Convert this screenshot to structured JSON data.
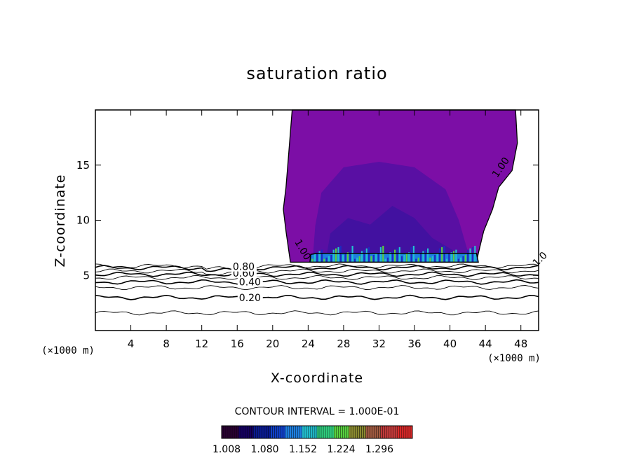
{
  "chart_data": {
    "type": "contour",
    "title": "saturation ratio",
    "xlabel": "X-coordinate",
    "ylabel": "Z-coordinate",
    "x_unit_left": "(×1000 m)",
    "x_unit_right": "(×1000 m)",
    "xlim": [
      0,
      50
    ],
    "ylim": [
      0,
      20
    ],
    "x_ticks": [
      4,
      8,
      12,
      16,
      20,
      24,
      28,
      32,
      36,
      40,
      44,
      48
    ],
    "y_ticks": [
      5,
      10,
      15
    ],
    "x_tick_labels": [
      "4",
      "8",
      "12",
      "16",
      "20",
      "24",
      "28",
      "32",
      "36",
      "40",
      "44",
      "48"
    ],
    "y_tick_labels": [
      "5",
      "10",
      "15"
    ],
    "contour_lines": [
      {
        "level": 0.1,
        "z": 1.6
      },
      {
        "level": 0.2,
        "z": 3.0
      },
      {
        "level": 0.3,
        "z": 3.9
      },
      {
        "level": 0.4,
        "z": 4.4
      },
      {
        "level": 0.5,
        "z": 4.8
      },
      {
        "level": 0.6,
        "z": 5.1
      },
      {
        "level": 0.7,
        "z": 5.4
      },
      {
        "level": 0.8,
        "z": 5.7
      },
      {
        "level": 0.9,
        "z": 5.85
      }
    ],
    "contour_labels": [
      {
        "text": "0.20",
        "x": 16.2,
        "z": 3.0
      },
      {
        "text": "0.40",
        "x": 16.2,
        "z": 4.4
      },
      {
        "text": "0.60",
        "x": 15.5,
        "z": 5.2
      },
      {
        "text": "0.80",
        "x": 15.5,
        "z": 5.8
      },
      {
        "text": "1.00",
        "x": 22.8,
        "z": 8.2
      },
      {
        "text": "1.00",
        "x": 45.0,
        "z": 14.0
      },
      {
        "text": "1.0",
        "x": 49.5,
        "z": 6.0
      }
    ],
    "supersaturated_region": {
      "z_base": 6.2,
      "left_edge": [
        [
          22.0,
          6.2
        ],
        [
          21.5,
          9.0
        ],
        [
          21.2,
          11.0
        ],
        [
          21.5,
          13.0
        ],
        [
          21.8,
          16.0
        ],
        [
          22.2,
          20.0
        ]
      ],
      "right_edge": [
        [
          47.4,
          20.0
        ],
        [
          47.6,
          17.0
        ],
        [
          47.0,
          14.5
        ],
        [
          45.5,
          13.0
        ],
        [
          44.8,
          11.0
        ],
        [
          43.8,
          9.0
        ],
        [
          43.2,
          7.0
        ],
        [
          43.0,
          6.2
        ]
      ]
    },
    "contour_interval_label": "CONTOUR INTERVAL = 1.000E-01",
    "colorbar": {
      "ticks": [
        "1.008",
        "1.080",
        "1.152",
        "1.224",
        "1.296"
      ],
      "colors": [
        "#2a0033",
        "#14005e",
        "#0a1a90",
        "#1040c8",
        "#1e7fe0",
        "#22c0d0",
        "#30d080",
        "#58d040",
        "#8a8a30",
        "#a05a40",
        "#c03a3a",
        "#e02a2a"
      ]
    },
    "fill_colors": {
      "low": "#7c0ea6",
      "mid": "#6a0ca0",
      "inner": "#530fa2",
      "core": "#3f12a0",
      "base_blue": "#1e7fe0",
      "base_cyan": "#22c0d0",
      "base_green": "#58d040"
    },
    "grid": false,
    "legend": "none"
  }
}
